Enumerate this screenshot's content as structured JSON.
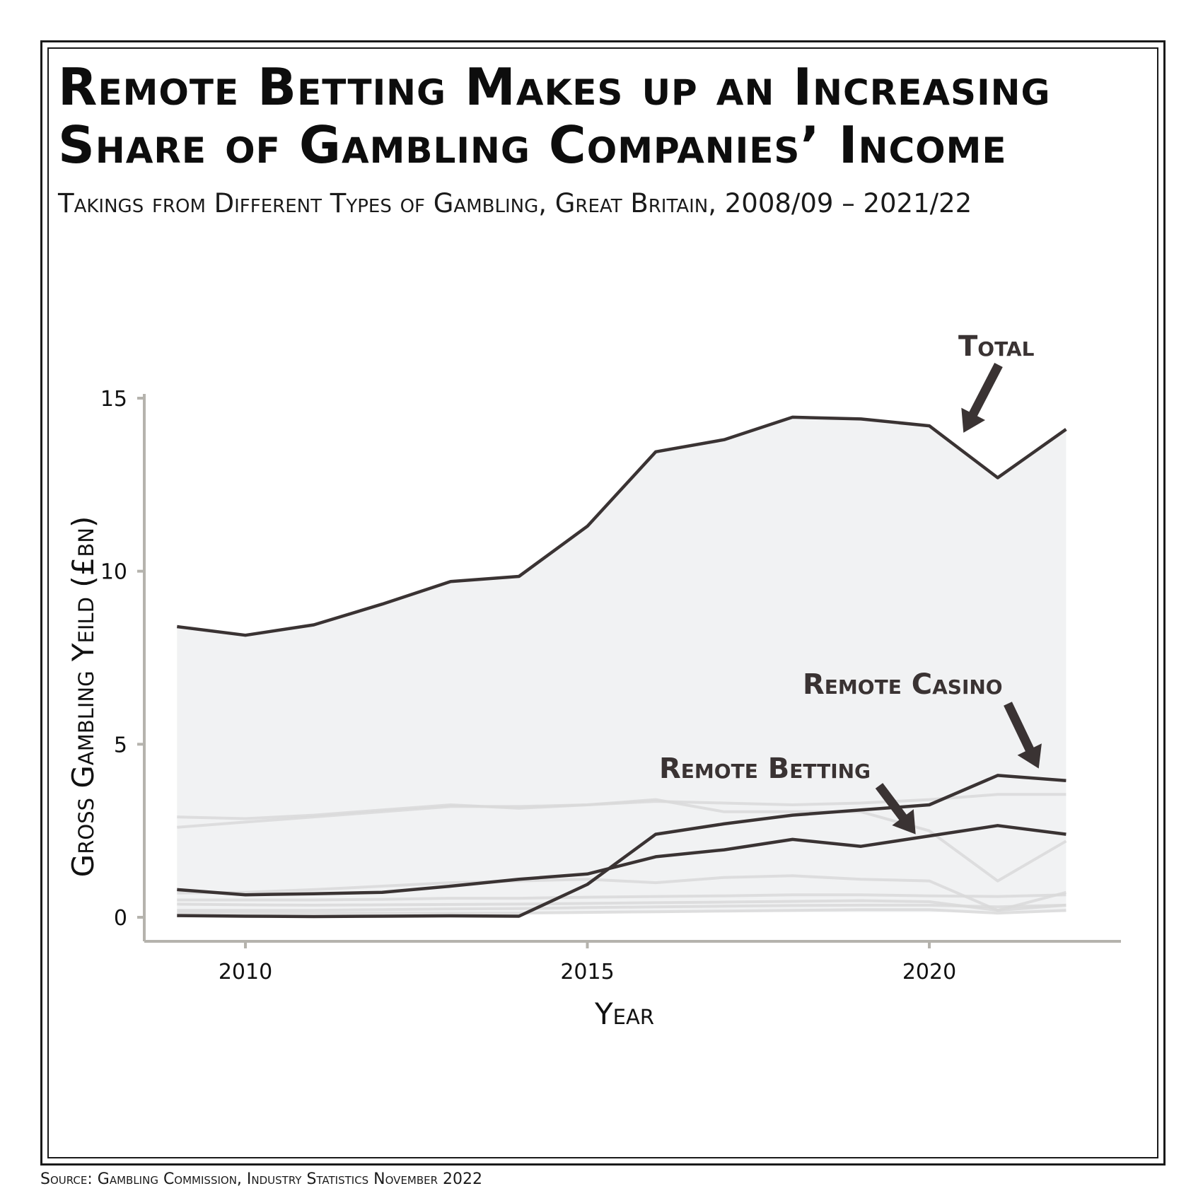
{
  "title": "Remote Betting Makes up an Increasing Share of Gambling Companies’ Income",
  "subtitle": "Takings from Different Types of Gambling, Great Britain, 2008/09 – 2021/22",
  "source": "Source: Gambling Commission, Industry Statistics November 2022",
  "colors": {
    "highlight_line": "#3a3333",
    "background_line": "#d9d9d9",
    "area_fill": "#f1f2f3",
    "axis": "#b5b3ad"
  },
  "chart_data": {
    "type": "line",
    "xlabel": "Year",
    "ylabel": "Gross Gambling Yeild (£bn)",
    "xlim": [
      2008.5,
      2022.3
    ],
    "ylim": [
      0,
      15
    ],
    "x_ticks": [
      "2010",
      "2015",
      "2020"
    ],
    "y_ticks": [
      "0",
      "5",
      "10",
      "15"
    ],
    "grid": false,
    "legend": "none",
    "x": [
      2009,
      2010,
      2011,
      2012,
      2013,
      2014,
      2015,
      2016,
      2017,
      2018,
      2019,
      2020,
      2021,
      2022
    ],
    "area_series": "Total",
    "highlighted_series": [
      {
        "name": "Total",
        "values": [
          8.4,
          8.15,
          8.45,
          9.05,
          9.7,
          9.85,
          11.3,
          13.45,
          13.8,
          14.45,
          14.4,
          14.2,
          12.7,
          14.1
        ]
      },
      {
        "name": "Remote Casino",
        "values": [
          0.05,
          0.03,
          0.02,
          0.03,
          0.04,
          0.03,
          0.95,
          2.4,
          2.7,
          2.95,
          3.1,
          3.25,
          4.1,
          3.95
        ]
      },
      {
        "name": "Remote Betting",
        "values": [
          0.8,
          0.65,
          0.68,
          0.72,
          0.9,
          1.1,
          1.25,
          1.75,
          1.95,
          2.25,
          2.05,
          2.35,
          2.65,
          2.4
        ]
      }
    ],
    "background_series": [
      {
        "values": [
          2.9,
          2.85,
          2.95,
          3.1,
          3.25,
          3.15,
          3.25,
          3.4,
          3.05,
          3.05,
          3.05,
          2.5,
          1.05,
          2.2
        ]
      },
      {
        "values": [
          2.6,
          2.75,
          2.9,
          3.05,
          3.2,
          3.2,
          3.25,
          3.35,
          3.3,
          3.25,
          3.3,
          3.4,
          3.55,
          3.55
        ]
      },
      {
        "values": [
          0.7,
          0.72,
          0.8,
          0.9,
          1.0,
          1.05,
          1.1,
          1.0,
          1.15,
          1.2,
          1.1,
          1.05,
          0.2,
          0.35
        ]
      },
      {
        "values": [
          0.5,
          0.5,
          0.5,
          0.52,
          0.55,
          0.55,
          0.58,
          0.6,
          0.62,
          0.65,
          0.65,
          0.62,
          0.6,
          0.65
        ]
      },
      {
        "values": [
          0.38,
          0.36,
          0.35,
          0.36,
          0.37,
          0.38,
          0.4,
          0.42,
          0.44,
          0.46,
          0.48,
          0.45,
          0.2,
          0.72
        ]
      },
      {
        "values": [
          0.2,
          0.2,
          0.2,
          0.22,
          0.24,
          0.25,
          0.28,
          0.3,
          0.32,
          0.34,
          0.35,
          0.35,
          0.3,
          0.35
        ]
      },
      {
        "values": [
          0.12,
          0.12,
          0.12,
          0.12,
          0.12,
          0.12,
          0.14,
          0.16,
          0.18,
          0.2,
          0.22,
          0.22,
          0.12,
          0.2
        ]
      }
    ],
    "annotations": [
      {
        "text": "Total",
        "target_x": 2020.5,
        "target_y": 14.0
      },
      {
        "text": "Remote Casino",
        "target_x": 2021.6,
        "target_y": 4.3
      },
      {
        "text": "Remote Betting",
        "target_x": 2019.8,
        "target_y": 2.4
      }
    ]
  }
}
